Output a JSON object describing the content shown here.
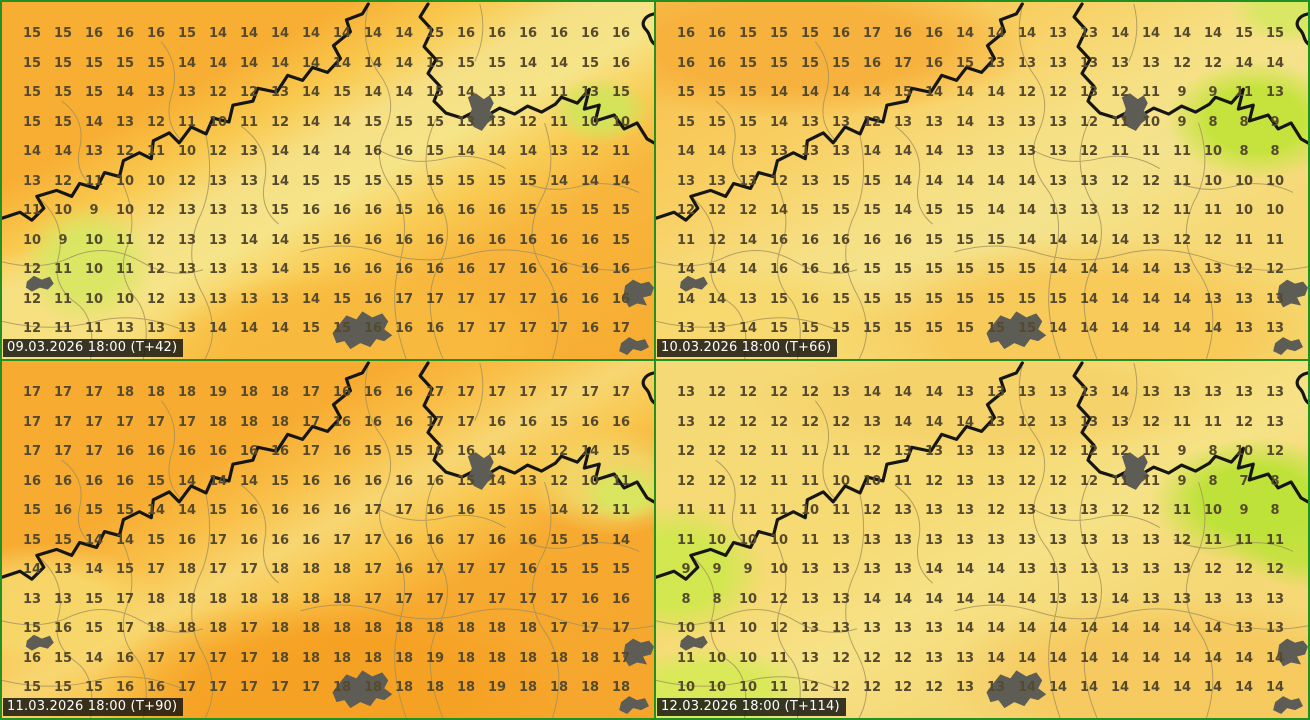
{
  "panels": [
    {
      "id": "T+42",
      "timestamp": "09.03.2026 18:00 (T+42)",
      "temps": [
        [
          15,
          15,
          16,
          16,
          16,
          15,
          14,
          14,
          14,
          14,
          14,
          14,
          14,
          15,
          16,
          16,
          16,
          16,
          16,
          16
        ],
        [
          15,
          15,
          15,
          15,
          15,
          14,
          14,
          14,
          14,
          14,
          14,
          14,
          14,
          15,
          15,
          15,
          14,
          14,
          15,
          16
        ],
        [
          15,
          15,
          15,
          14,
          13,
          13,
          12,
          12,
          13,
          14,
          15,
          14,
          14,
          15,
          14,
          13,
          11,
          11,
          13,
          15
        ],
        [
          15,
          15,
          14,
          13,
          12,
          11,
          10,
          11,
          12,
          14,
          14,
          15,
          15,
          15,
          13,
          13,
          12,
          11,
          10,
          10
        ],
        [
          14,
          14,
          13,
          12,
          11,
          10,
          12,
          13,
          14,
          14,
          14,
          16,
          16,
          15,
          14,
          14,
          14,
          13,
          12,
          11
        ],
        [
          13,
          12,
          11,
          10,
          10,
          12,
          13,
          13,
          14,
          15,
          15,
          15,
          15,
          15,
          15,
          15,
          15,
          14,
          14,
          14
        ],
        [
          11,
          10,
          9,
          10,
          12,
          13,
          13,
          13,
          15,
          16,
          16,
          16,
          15,
          16,
          16,
          16,
          15,
          15,
          15,
          15
        ],
        [
          10,
          9,
          10,
          11,
          12,
          13,
          13,
          14,
          14,
          15,
          16,
          16,
          16,
          16,
          16,
          16,
          16,
          16,
          16,
          15
        ],
        [
          12,
          11,
          10,
          11,
          12,
          13,
          13,
          13,
          14,
          15,
          16,
          16,
          16,
          16,
          16,
          17,
          16,
          16,
          16,
          16
        ],
        [
          12,
          11,
          10,
          10,
          12,
          13,
          13,
          13,
          13,
          14,
          15,
          16,
          17,
          17,
          17,
          17,
          17,
          16,
          16,
          16
        ],
        [
          12,
          11,
          11,
          13,
          13,
          13,
          14,
          14,
          14,
          15,
          15,
          16,
          16,
          16,
          17,
          17,
          17,
          17,
          16,
          17
        ]
      ]
    },
    {
      "id": "T+66",
      "timestamp": "10.03.2026 18:00 (T+66)",
      "temps": [
        [
          16,
          16,
          15,
          15,
          15,
          16,
          17,
          16,
          16,
          14,
          14,
          14,
          13,
          13,
          14,
          14,
          14,
          14,
          15,
          15
        ],
        [
          16,
          16,
          15,
          15,
          15,
          15,
          16,
          17,
          16,
          15,
          13,
          13,
          13,
          13,
          13,
          13,
          12,
          12,
          14,
          14
        ],
        [
          15,
          15,
          15,
          14,
          14,
          14,
          14,
          15,
          14,
          14,
          14,
          12,
          12,
          13,
          12,
          11,
          9,
          9,
          11,
          13
        ],
        [
          15,
          15,
          15,
          14,
          13,
          13,
          12,
          13,
          13,
          14,
          13,
          13,
          13,
          12,
          11,
          10,
          9,
          8,
          8,
          9
        ],
        [
          14,
          14,
          13,
          13,
          13,
          13,
          14,
          14,
          14,
          13,
          13,
          13,
          13,
          12,
          11,
          11,
          11,
          10,
          8,
          8
        ],
        [
          13,
          13,
          13,
          12,
          13,
          15,
          15,
          14,
          14,
          14,
          14,
          14,
          13,
          13,
          12,
          12,
          11,
          10,
          10,
          10
        ],
        [
          12,
          12,
          12,
          14,
          15,
          15,
          15,
          14,
          15,
          15,
          14,
          14,
          13,
          13,
          13,
          12,
          11,
          11,
          10,
          10
        ],
        [
          11,
          12,
          14,
          16,
          16,
          16,
          16,
          16,
          15,
          15,
          15,
          14,
          14,
          14,
          14,
          13,
          12,
          12,
          11,
          11
        ],
        [
          14,
          14,
          14,
          16,
          16,
          16,
          15,
          15,
          15,
          15,
          15,
          15,
          14,
          14,
          14,
          14,
          13,
          13,
          12,
          12
        ],
        [
          14,
          14,
          13,
          15,
          16,
          15,
          15,
          15,
          15,
          15,
          15,
          15,
          15,
          14,
          14,
          14,
          14,
          13,
          13,
          13
        ],
        [
          13,
          13,
          14,
          15,
          15,
          15,
          15,
          15,
          15,
          15,
          15,
          15,
          14,
          14,
          14,
          14,
          14,
          14,
          13,
          13
        ]
      ]
    },
    {
      "id": "T+90",
      "timestamp": "11.03.2026 18:00 (T+90)",
      "temps": [
        [
          17,
          17,
          17,
          18,
          18,
          18,
          19,
          18,
          18,
          17,
          16,
          16,
          16,
          17,
          17,
          17,
          17,
          17,
          17,
          17
        ],
        [
          17,
          17,
          17,
          17,
          17,
          17,
          18,
          18,
          18,
          17,
          16,
          16,
          16,
          17,
          17,
          16,
          16,
          15,
          16,
          16
        ],
        [
          17,
          17,
          17,
          16,
          16,
          16,
          16,
          16,
          16,
          17,
          16,
          15,
          15,
          16,
          16,
          14,
          12,
          12,
          14,
          15
        ],
        [
          16,
          16,
          16,
          16,
          15,
          14,
          14,
          14,
          15,
          16,
          16,
          16,
          16,
          16,
          15,
          14,
          13,
          12,
          10,
          11
        ],
        [
          15,
          16,
          15,
          15,
          14,
          14,
          15,
          16,
          16,
          16,
          16,
          17,
          17,
          16,
          16,
          15,
          15,
          14,
          12,
          11
        ],
        [
          15,
          15,
          14,
          14,
          15,
          16,
          17,
          16,
          16,
          16,
          17,
          17,
          16,
          16,
          17,
          16,
          16,
          15,
          15,
          14
        ],
        [
          14,
          13,
          14,
          15,
          17,
          18,
          17,
          17,
          18,
          18,
          18,
          17,
          16,
          17,
          17,
          17,
          16,
          15,
          15,
          15
        ],
        [
          13,
          13,
          15,
          17,
          18,
          18,
          18,
          18,
          18,
          18,
          18,
          17,
          17,
          17,
          17,
          17,
          17,
          17,
          16,
          16
        ],
        [
          15,
          16,
          15,
          17,
          18,
          18,
          18,
          17,
          18,
          18,
          18,
          18,
          18,
          18,
          18,
          18,
          18,
          17,
          17,
          17
        ],
        [
          16,
          15,
          14,
          16,
          17,
          17,
          17,
          17,
          18,
          18,
          18,
          18,
          18,
          19,
          18,
          18,
          18,
          18,
          18,
          17
        ],
        [
          15,
          15,
          15,
          16,
          16,
          17,
          17,
          17,
          17,
          17,
          18,
          18,
          18,
          18,
          18,
          19,
          18,
          18,
          18,
          18
        ]
      ]
    },
    {
      "id": "T+114",
      "timestamp": "12.03.2026 18:00 (T+114)",
      "temps": [
        [
          13,
          12,
          12,
          12,
          12,
          13,
          14,
          14,
          14,
          13,
          13,
          13,
          13,
          13,
          14,
          13,
          13,
          13,
          13,
          13
        ],
        [
          13,
          12,
          12,
          12,
          12,
          12,
          13,
          14,
          14,
          14,
          13,
          12,
          13,
          13,
          13,
          12,
          11,
          11,
          12,
          13
        ],
        [
          12,
          12,
          12,
          11,
          11,
          11,
          12,
          13,
          13,
          13,
          13,
          12,
          12,
          12,
          12,
          11,
          9,
          8,
          10,
          12
        ],
        [
          12,
          12,
          12,
          11,
          11,
          10,
          10,
          11,
          12,
          13,
          13,
          12,
          12,
          12,
          11,
          11,
          9,
          8,
          7,
          8
        ],
        [
          11,
          11,
          11,
          11,
          10,
          11,
          12,
          13,
          13,
          13,
          12,
          13,
          13,
          13,
          12,
          12,
          11,
          10,
          9,
          8
        ],
        [
          11,
          10,
          10,
          10,
          11,
          13,
          13,
          13,
          13,
          13,
          13,
          13,
          13,
          13,
          13,
          13,
          12,
          11,
          11,
          11
        ],
        [
          9,
          9,
          9,
          10,
          13,
          13,
          13,
          13,
          14,
          14,
          14,
          13,
          13,
          13,
          13,
          13,
          13,
          12,
          12,
          12
        ],
        [
          8,
          8,
          10,
          12,
          13,
          13,
          14,
          14,
          14,
          14,
          14,
          14,
          13,
          13,
          14,
          13,
          13,
          13,
          13,
          13
        ],
        [
          10,
          11,
          10,
          12,
          13,
          13,
          13,
          13,
          13,
          14,
          14,
          14,
          14,
          14,
          14,
          14,
          14,
          14,
          13,
          13
        ],
        [
          11,
          10,
          10,
          11,
          13,
          12,
          12,
          12,
          13,
          13,
          14,
          14,
          14,
          14,
          14,
          14,
          14,
          14,
          14,
          14
        ],
        [
          10,
          10,
          10,
          11,
          12,
          12,
          12,
          12,
          12,
          13,
          13,
          14,
          14,
          14,
          14,
          14,
          14,
          14,
          14,
          14
        ]
      ]
    }
  ],
  "icons": {
    "city": "city-blob-icon",
    "map_border": "country-border-line"
  },
  "colors": {
    "frame_green": "#239023",
    "border_black": "#161616",
    "district_tan": "#a3905a",
    "city_gray": "#5d5d55",
    "temp_text": "#564a2e",
    "label_bg": "#0f0f0f",
    "label_text": "#ffffff",
    "warm_orange": "#f7ab31",
    "mid_yellow": "#f6e288",
    "cool_green": "#c6e33d"
  }
}
